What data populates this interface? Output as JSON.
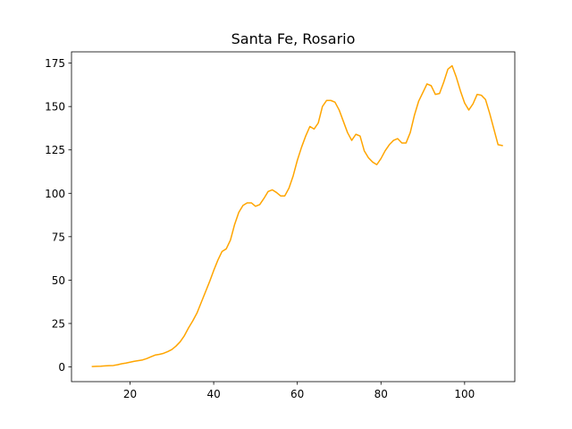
{
  "chart_data": {
    "type": "line",
    "title": "Santa Fe, Rosario",
    "xlabel": "",
    "ylabel": "",
    "xlim": [
      6,
      112
    ],
    "ylim": [
      -8.5,
      181.5
    ],
    "xticks": [
      20,
      40,
      60,
      80,
      100
    ],
    "yticks": [
      0,
      25,
      50,
      75,
      100,
      125,
      150,
      175
    ],
    "grid": false,
    "series": [
      {
        "color": "#ffa500",
        "x": [
          11,
          12,
          13,
          14,
          15,
          16,
          17,
          18,
          19,
          20,
          21,
          22,
          23,
          24,
          25,
          26,
          27,
          28,
          29,
          30,
          31,
          32,
          33,
          34,
          35,
          36,
          37,
          38,
          39,
          40,
          41,
          42,
          43,
          44,
          45,
          46,
          47,
          48,
          49,
          50,
          51,
          52,
          53,
          54,
          55,
          56,
          57,
          58,
          59,
          60,
          61,
          62,
          63,
          64,
          65,
          66,
          67,
          68,
          69,
          70,
          71,
          72,
          73,
          74,
          75,
          76,
          77,
          78,
          79,
          80,
          81,
          82,
          83,
          84,
          85,
          86,
          87,
          88,
          89,
          90,
          91,
          92,
          93,
          94,
          95,
          96,
          97,
          98,
          99,
          100,
          101,
          102,
          103,
          104,
          105,
          106,
          107,
          108,
          109
        ],
        "y": [
          0.2,
          0.3,
          0.4,
          0.6,
          0.7,
          0.8,
          1.2,
          1.8,
          2.2,
          2.7,
          3.2,
          3.6,
          4.0,
          4.8,
          5.8,
          6.8,
          7.2,
          7.8,
          8.8,
          10.0,
          12.0,
          14.5,
          18.0,
          22.5,
          26.5,
          31.0,
          37.0,
          43.0,
          49.0,
          55.5,
          61.5,
          66.5,
          68.0,
          73.0,
          82.0,
          89.0,
          93.0,
          94.5,
          94.5,
          92.5,
          93.5,
          97.0,
          101.0,
          102.0,
          100.5,
          98.5,
          98.5,
          103.0,
          110.0,
          119.0,
          126.5,
          133.0,
          138.5,
          137.0,
          140.5,
          150.0,
          153.5,
          153.5,
          152.5,
          148.0,
          141.5,
          135.0,
          130.5,
          134.0,
          133.0,
          124.5,
          120.5,
          118.0,
          116.5,
          120.0,
          124.5,
          128.0,
          130.5,
          131.5,
          129.0,
          129.0,
          135.0,
          145.0,
          153.0,
          158.0,
          163.0,
          162.0,
          157.0,
          157.5,
          164.0,
          171.5,
          173.5,
          167.0,
          159.0,
          152.0,
          148.0,
          151.5,
          157.0,
          156.5,
          154.0,
          146.0,
          137.0,
          128.0,
          127.5
        ]
      }
    ]
  }
}
